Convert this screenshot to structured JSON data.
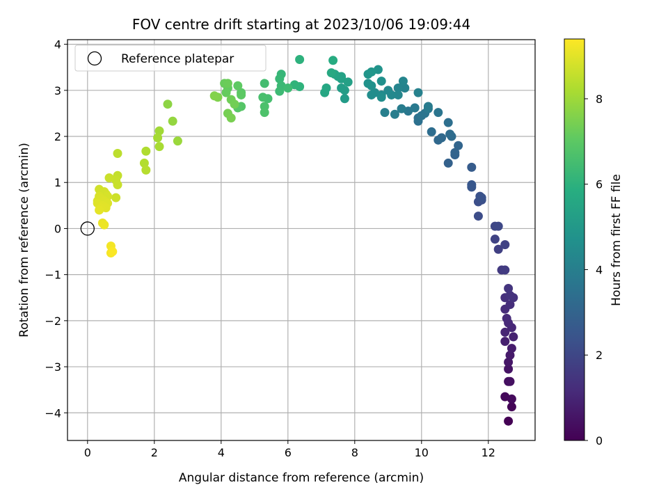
{
  "chart_data": {
    "type": "scatter",
    "title": "FOV centre drift starting at 2023/10/06 19:09:44",
    "xlabel": "Angular distance from reference (arcmin)",
    "ylabel": "Rotation from reference (arcmin)",
    "xlim": [
      -0.6,
      13.4
    ],
    "ylim": [
      -4.6,
      4.1
    ],
    "xticks": [
      0,
      2,
      4,
      6,
      8,
      10,
      12
    ],
    "yticks": [
      -4,
      -3,
      -2,
      -1,
      0,
      1,
      2,
      3,
      4
    ],
    "grid": true,
    "legend": {
      "placement": "top-left",
      "entries": [
        "Reference platepar"
      ]
    },
    "reference_point": {
      "x": 0,
      "y": 0,
      "label": "Reference platepar"
    },
    "colorbar": {
      "label": "Hours from first FF file",
      "range": [
        0,
        9.4
      ],
      "ticks": [
        0,
        2,
        4,
        6,
        8
      ],
      "colormap": "viridis"
    },
    "points": [
      {
        "x": 12.6,
        "y": -4.18,
        "t": 0.0
      },
      {
        "x": 12.7,
        "y": -3.87,
        "t": 0.1
      },
      {
        "x": 12.5,
        "y": -3.65,
        "t": 0.18
      },
      {
        "x": 12.7,
        "y": -3.7,
        "t": 0.25
      },
      {
        "x": 12.6,
        "y": -3.32,
        "t": 0.35
      },
      {
        "x": 12.65,
        "y": -3.32,
        "t": 0.4
      },
      {
        "x": 12.6,
        "y": -3.05,
        "t": 0.5
      },
      {
        "x": 12.6,
        "y": -2.9,
        "t": 0.6
      },
      {
        "x": 12.65,
        "y": -2.75,
        "t": 0.68
      },
      {
        "x": 12.7,
        "y": -2.6,
        "t": 0.75
      },
      {
        "x": 12.5,
        "y": -2.45,
        "t": 0.85
      },
      {
        "x": 12.75,
        "y": -2.35,
        "t": 0.9
      },
      {
        "x": 12.5,
        "y": -2.25,
        "t": 1.0
      },
      {
        "x": 12.7,
        "y": -2.15,
        "t": 1.05
      },
      {
        "x": 12.6,
        "y": -2.05,
        "t": 1.1
      },
      {
        "x": 12.55,
        "y": -1.95,
        "t": 1.15
      },
      {
        "x": 12.5,
        "y": -1.75,
        "t": 1.2
      },
      {
        "x": 12.65,
        "y": -1.65,
        "t": 1.25
      },
      {
        "x": 12.5,
        "y": -1.5,
        "t": 1.3
      },
      {
        "x": 12.75,
        "y": -1.5,
        "t": 1.35
      },
      {
        "x": 12.65,
        "y": -1.45,
        "t": 1.4
      },
      {
        "x": 12.6,
        "y": -1.3,
        "t": 1.45
      },
      {
        "x": 12.4,
        "y": -0.9,
        "t": 1.6
      },
      {
        "x": 12.5,
        "y": -0.9,
        "t": 1.65
      },
      {
        "x": 12.3,
        "y": -0.45,
        "t": 1.8
      },
      {
        "x": 12.5,
        "y": -0.35,
        "t": 1.85
      },
      {
        "x": 12.2,
        "y": -0.23,
        "t": 1.9
      },
      {
        "x": 12.2,
        "y": 0.05,
        "t": 2.0
      },
      {
        "x": 12.3,
        "y": 0.05,
        "t": 2.05
      },
      {
        "x": 11.7,
        "y": 0.27,
        "t": 2.2
      },
      {
        "x": 11.7,
        "y": 0.58,
        "t": 2.25
      },
      {
        "x": 11.8,
        "y": 0.62,
        "t": 2.3
      },
      {
        "x": 11.75,
        "y": 0.7,
        "t": 2.35
      },
      {
        "x": 11.8,
        "y": 0.67,
        "t": 2.4
      },
      {
        "x": 11.5,
        "y": 0.9,
        "t": 2.5
      },
      {
        "x": 11.5,
        "y": 0.95,
        "t": 2.55
      },
      {
        "x": 11.5,
        "y": 1.33,
        "t": 2.7
      },
      {
        "x": 10.8,
        "y": 1.42,
        "t": 2.9
      },
      {
        "x": 11.0,
        "y": 1.6,
        "t": 2.95
      },
      {
        "x": 11.0,
        "y": 1.65,
        "t": 3.0
      },
      {
        "x": 11.1,
        "y": 1.8,
        "t": 3.05
      },
      {
        "x": 10.5,
        "y": 1.92,
        "t": 3.15
      },
      {
        "x": 10.6,
        "y": 1.97,
        "t": 3.2
      },
      {
        "x": 10.9,
        "y": 2.0,
        "t": 3.25
      },
      {
        "x": 10.85,
        "y": 2.05,
        "t": 3.3
      },
      {
        "x": 10.3,
        "y": 2.1,
        "t": 3.35
      },
      {
        "x": 10.8,
        "y": 2.3,
        "t": 3.4
      },
      {
        "x": 9.9,
        "y": 2.33,
        "t": 3.45
      },
      {
        "x": 9.9,
        "y": 2.4,
        "t": 3.5
      },
      {
        "x": 10.0,
        "y": 2.45,
        "t": 3.55
      },
      {
        "x": 10.1,
        "y": 2.5,
        "t": 3.6
      },
      {
        "x": 10.5,
        "y": 2.52,
        "t": 3.65
      },
      {
        "x": 9.6,
        "y": 2.55,
        "t": 3.7
      },
      {
        "x": 10.2,
        "y": 2.6,
        "t": 3.75
      },
      {
        "x": 9.8,
        "y": 2.62,
        "t": 3.8
      },
      {
        "x": 10.2,
        "y": 2.65,
        "t": 3.85
      },
      {
        "x": 9.4,
        "y": 2.6,
        "t": 3.9
      },
      {
        "x": 9.2,
        "y": 2.48,
        "t": 3.95
      },
      {
        "x": 8.9,
        "y": 2.52,
        "t": 4.0
      },
      {
        "x": 9.9,
        "y": 2.95,
        "t": 4.1
      },
      {
        "x": 9.5,
        "y": 3.05,
        "t": 4.15
      },
      {
        "x": 9.3,
        "y": 3.05,
        "t": 4.2
      },
      {
        "x": 9.45,
        "y": 3.2,
        "t": 4.25
      },
      {
        "x": 9.3,
        "y": 2.9,
        "t": 4.3
      },
      {
        "x": 9.1,
        "y": 2.9,
        "t": 4.35
      },
      {
        "x": 9.0,
        "y": 3.0,
        "t": 4.4
      },
      {
        "x": 8.8,
        "y": 2.9,
        "t": 4.45
      },
      {
        "x": 8.6,
        "y": 2.95,
        "t": 4.5
      },
      {
        "x": 8.5,
        "y": 2.9,
        "t": 4.55
      },
      {
        "x": 8.8,
        "y": 2.85,
        "t": 4.6
      },
      {
        "x": 8.8,
        "y": 3.2,
        "t": 4.65
      },
      {
        "x": 8.5,
        "y": 3.1,
        "t": 4.7
      },
      {
        "x": 8.4,
        "y": 3.15,
        "t": 4.75
      },
      {
        "x": 8.7,
        "y": 3.45,
        "t": 4.8
      },
      {
        "x": 8.4,
        "y": 3.35,
        "t": 4.85
      },
      {
        "x": 8.5,
        "y": 3.4,
        "t": 4.9
      },
      {
        "x": 7.7,
        "y": 2.82,
        "t": 5.1
      },
      {
        "x": 7.7,
        "y": 3.0,
        "t": 5.15
      },
      {
        "x": 7.6,
        "y": 3.05,
        "t": 5.2
      },
      {
        "x": 7.6,
        "y": 3.25,
        "t": 5.25
      },
      {
        "x": 7.8,
        "y": 3.18,
        "t": 5.3
      },
      {
        "x": 7.6,
        "y": 3.3,
        "t": 5.35
      },
      {
        "x": 7.5,
        "y": 3.3,
        "t": 5.4
      },
      {
        "x": 7.4,
        "y": 3.35,
        "t": 5.45
      },
      {
        "x": 7.1,
        "y": 2.95,
        "t": 5.55
      },
      {
        "x": 7.15,
        "y": 3.05,
        "t": 5.6
      },
      {
        "x": 7.3,
        "y": 3.38,
        "t": 5.65
      },
      {
        "x": 7.35,
        "y": 3.65,
        "t": 5.75
      },
      {
        "x": 6.35,
        "y": 3.67,
        "t": 6.0
      },
      {
        "x": 6.35,
        "y": 3.08,
        "t": 6.05
      },
      {
        "x": 6.2,
        "y": 3.12,
        "t": 6.1
      },
      {
        "x": 5.8,
        "y": 3.35,
        "t": 6.2
      },
      {
        "x": 5.75,
        "y": 3.25,
        "t": 6.25
      },
      {
        "x": 5.8,
        "y": 3.1,
        "t": 6.3
      },
      {
        "x": 5.75,
        "y": 2.98,
        "t": 6.35
      },
      {
        "x": 6.0,
        "y": 3.05,
        "t": 6.4
      },
      {
        "x": 5.3,
        "y": 3.15,
        "t": 6.5
      },
      {
        "x": 5.4,
        "y": 2.82,
        "t": 6.55
      },
      {
        "x": 5.25,
        "y": 2.85,
        "t": 6.6
      },
      {
        "x": 5.3,
        "y": 2.65,
        "t": 6.65
      },
      {
        "x": 5.3,
        "y": 2.52,
        "t": 6.7
      },
      {
        "x": 4.6,
        "y": 2.65,
        "t": 6.85
      },
      {
        "x": 4.5,
        "y": 2.62,
        "t": 6.9
      },
      {
        "x": 4.6,
        "y": 2.95,
        "t": 6.95
      },
      {
        "x": 4.6,
        "y": 2.9,
        "t": 7.0
      },
      {
        "x": 4.5,
        "y": 3.1,
        "t": 7.05
      },
      {
        "x": 4.2,
        "y": 3.05,
        "t": 7.1
      },
      {
        "x": 4.15,
        "y": 2.95,
        "t": 7.15
      },
      {
        "x": 4.1,
        "y": 3.15,
        "t": 7.2
      },
      {
        "x": 4.2,
        "y": 3.15,
        "t": 7.25
      },
      {
        "x": 4.3,
        "y": 2.8,
        "t": 7.3
      },
      {
        "x": 4.4,
        "y": 2.7,
        "t": 7.35
      },
      {
        "x": 4.2,
        "y": 2.5,
        "t": 7.4
      },
      {
        "x": 4.3,
        "y": 2.4,
        "t": 7.45
      },
      {
        "x": 3.9,
        "y": 2.85,
        "t": 7.55
      },
      {
        "x": 3.8,
        "y": 2.88,
        "t": 7.6
      },
      {
        "x": 2.4,
        "y": 2.7,
        "t": 7.75
      },
      {
        "x": 2.55,
        "y": 2.33,
        "t": 7.85
      },
      {
        "x": 2.7,
        "y": 1.9,
        "t": 7.95
      },
      {
        "x": 2.15,
        "y": 2.12,
        "t": 8.05
      },
      {
        "x": 2.1,
        "y": 1.97,
        "t": 8.1
      },
      {
        "x": 2.15,
        "y": 1.78,
        "t": 8.15
      },
      {
        "x": 1.75,
        "y": 1.68,
        "t": 8.25
      },
      {
        "x": 1.7,
        "y": 1.42,
        "t": 8.3
      },
      {
        "x": 1.75,
        "y": 1.27,
        "t": 8.35
      },
      {
        "x": 0.9,
        "y": 1.63,
        "t": 8.45
      },
      {
        "x": 0.9,
        "y": 1.15,
        "t": 8.55
      },
      {
        "x": 0.85,
        "y": 1.05,
        "t": 8.6
      },
      {
        "x": 0.9,
        "y": 0.95,
        "t": 8.62
      },
      {
        "x": 0.65,
        "y": 1.1,
        "t": 8.65
      },
      {
        "x": 0.85,
        "y": 0.67,
        "t": 8.7
      },
      {
        "x": 0.35,
        "y": 0.85,
        "t": 8.75
      },
      {
        "x": 0.5,
        "y": 0.8,
        "t": 8.78
      },
      {
        "x": 0.55,
        "y": 0.75,
        "t": 8.8
      },
      {
        "x": 0.6,
        "y": 0.7,
        "t": 8.83
      },
      {
        "x": 0.35,
        "y": 0.7,
        "t": 8.85
      },
      {
        "x": 0.3,
        "y": 0.6,
        "t": 8.87
      },
      {
        "x": 0.4,
        "y": 0.65,
        "t": 8.89
      },
      {
        "x": 0.5,
        "y": 0.6,
        "t": 8.91
      },
      {
        "x": 0.6,
        "y": 0.55,
        "t": 8.93
      },
      {
        "x": 0.3,
        "y": 0.55,
        "t": 8.95
      },
      {
        "x": 0.45,
        "y": 0.5,
        "t": 8.97
      },
      {
        "x": 0.55,
        "y": 0.45,
        "t": 8.99
      },
      {
        "x": 0.4,
        "y": 0.45,
        "t": 9.01
      },
      {
        "x": 0.35,
        "y": 0.4,
        "t": 9.03
      },
      {
        "x": 0.45,
        "y": 0.12,
        "t": 9.1
      },
      {
        "x": 0.5,
        "y": 0.08,
        "t": 9.15
      },
      {
        "x": 0.7,
        "y": -0.38,
        "t": 9.25
      },
      {
        "x": 0.7,
        "y": -0.53,
        "t": 9.3
      },
      {
        "x": 0.75,
        "y": -0.5,
        "t": 9.35
      }
    ]
  }
}
